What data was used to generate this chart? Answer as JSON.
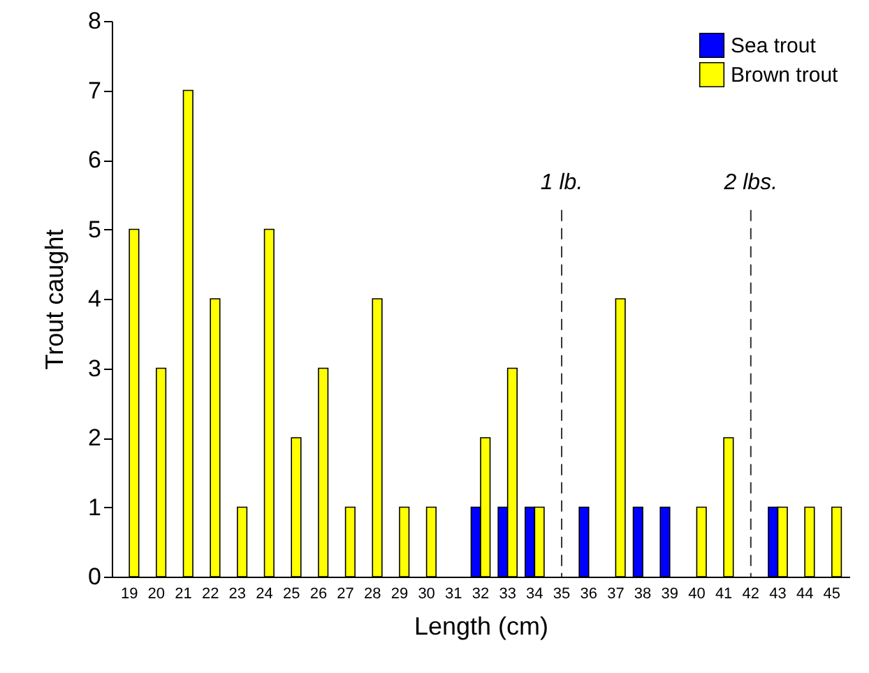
{
  "chart_data": {
    "type": "bar",
    "xlabel": "Length (cm)",
    "ylabel": "Trout caught",
    "categories": [
      "19",
      "20",
      "21",
      "22",
      "23",
      "24",
      "25",
      "26",
      "27",
      "28",
      "29",
      "30",
      "31",
      "32",
      "33",
      "34",
      "35",
      "36",
      "37",
      "38",
      "39",
      "40",
      "41",
      "42",
      "43",
      "44",
      "45"
    ],
    "series": [
      {
        "name": "Sea trout",
        "color": "#0000ff",
        "values": [
          0,
          0,
          0,
          0,
          0,
          0,
          0,
          0,
          0,
          0,
          0,
          0,
          0,
          1,
          1,
          1,
          0,
          1,
          0,
          1,
          1,
          0,
          0,
          0,
          1,
          0,
          0
        ]
      },
      {
        "name": "Brown trout",
        "color": "#ffff00",
        "values": [
          5,
          3,
          7,
          4,
          1,
          5,
          2,
          3,
          1,
          4,
          1,
          1,
          0,
          2,
          3,
          1,
          0,
          0,
          4,
          0,
          0,
          1,
          2,
          0,
          1,
          1,
          1
        ]
      }
    ],
    "ylim": [
      0,
      8
    ],
    "yticks": [
      0,
      1,
      2,
      3,
      4,
      5,
      6,
      7,
      8
    ],
    "ref_lines": [
      {
        "axis": "x",
        "value": "35",
        "label": "1 lb.",
        "line_style": "dashed"
      },
      {
        "axis": "x",
        "value": "42",
        "label": "2 lbs.",
        "line_style": "dashed"
      }
    ],
    "legend": "top right",
    "grid": false
  }
}
